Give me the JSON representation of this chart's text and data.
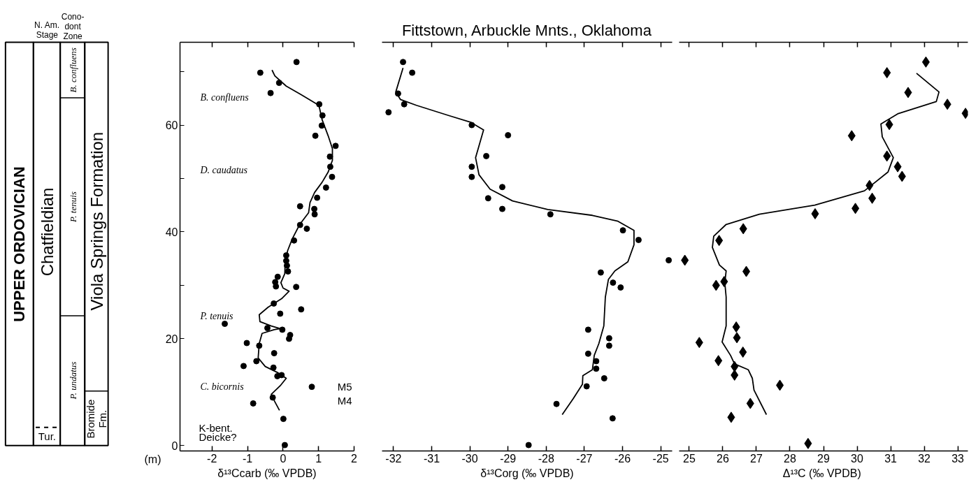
{
  "chart_data": [
    {
      "type": "other",
      "annotations": [
        "UPPER ORDOVICIAN",
        "N. Am.\nStage",
        "Chatfieldian",
        "Tur.",
        "Cono-\ndont\nZone",
        "B. confluens",
        "P. tenuis",
        "P. undatus",
        "Viola Springs Formation",
        "Bromide\nFm."
      ]
    },
    {
      "type": "scatter",
      "xlabel": "δ¹³Ccarb (‰ VPDB)",
      "ylabel": "(m)",
      "xlim": [
        -2.9,
        2
      ],
      "xticks": [
        -2,
        -1,
        0,
        1,
        2
      ],
      "ylim": [
        -1,
        75.5
      ],
      "yticks": [
        0,
        20,
        {
          "value": 30,
          "label": null
        },
        40,
        {
          "value": 50,
          "label": null
        },
        60,
        {
          "value": 70,
          "label": null
        }
      ],
      "annotations": [
        "B. confluens",
        "D. caudatus",
        "P. tenuis",
        "C. bicornis",
        "K-bent.",
        "Deicke?",
        "M5\nM4"
      ],
      "series": [
        {
          "type": "scatter",
          "marker": "circle",
          "color": "#000000",
          "x": [
            0.38,
            -0.64,
            -0.11,
            -0.35,
            1.02,
            1.11,
            1.09,
            0.91,
            1.48,
            1.32,
            1.33,
            1.38,
            1.21,
            0.96,
            0.48,
            0.88,
            0.89,
            0.48,
            0.67,
            0.31,
            0.09,
            0.09,
            0.11,
            0.14,
            -0.15,
            -0.22,
            -0.2,
            0.37,
            -0.26,
            0.51,
            -0.08,
            -1.64,
            -0.44,
            -0.02,
            0.2,
            0.17,
            -1.02,
            -0.67,
            -0.25,
            -1.11,
            -0.75,
            -0.27,
            -0.16,
            -0.04,
            0.81,
            -0.29,
            -0.84,
            0.01,
            0.05
          ],
          "values": [
            71.8,
            69.8,
            67.9,
            66.0,
            63.9,
            61.8,
            59.9,
            58.0,
            56.1,
            54.1,
            52.2,
            50.3,
            48.3,
            46.4,
            44.8,
            44.3,
            43.3,
            41.3,
            40.6,
            38.4,
            35.6,
            34.6,
            33.7,
            32.6,
            31.6,
            30.6,
            29.8,
            29.7,
            26.6,
            25.5,
            24.7,
            22.8,
            22.0,
            21.7,
            20.7,
            20.0,
            19.2,
            18.7,
            17.3,
            14.9,
            15.8,
            14.6,
            13.0,
            13.2,
            11.0,
            9.0,
            7.9,
            5.0,
            0.1
          ]
        },
        {
          "type": "line",
          "color": "#000000",
          "x": [
            -0.31,
            -0.23,
            0.09,
            0.51,
            1.01,
            1.1,
            1.27,
            1.39,
            1.39,
            1.27,
            1.1,
            0.89,
            0.76,
            0.72,
            0.47,
            0.26,
            0.13,
            0.06,
            0.05,
            -0.06,
            0.0,
            0.17,
            -0.04,
            -0.42,
            -0.67,
            -0.65,
            -0.33,
            -0.08,
            -0.25,
            -0.59,
            -0.67,
            -0.7,
            -0.5,
            -0.16,
            0.09,
            -0.08,
            -0.33,
            -0.23,
            -0.1
          ],
          "values": [
            70.3,
            69.2,
            67.3,
            65.7,
            63.7,
            61.0,
            58.0,
            55.6,
            53.4,
            51.2,
            49.3,
            47.4,
            45.5,
            43.6,
            41.4,
            38.7,
            36.5,
            34.4,
            32.2,
            30.5,
            29.5,
            28.9,
            27.5,
            25.9,
            24.5,
            23.2,
            22.4,
            21.9,
            21.7,
            21.0,
            19.1,
            16.4,
            14.8,
            13.7,
            12.6,
            11.2,
            9.6,
            8.2,
            6.6
          ]
        }
      ]
    },
    {
      "type": "scatter",
      "title": "Fittstown, Arbuckle Mnts., Oklahoma",
      "xlabel": "δ¹³Corg (‰ VPDB)",
      "xlim": [
        -32.3,
        -24.7
      ],
      "xticks": [
        -32,
        -31,
        -30,
        -29,
        -28,
        -27,
        -26,
        -25
      ],
      "ylim": [
        -1,
        75.5
      ],
      "tick_labels": "x",
      "series": [
        {
          "type": "scatter",
          "marker": "circle",
          "color": "#000000",
          "x": [
            -31.75,
            -31.51,
            -31.88,
            -31.72,
            -32.13,
            -29.95,
            -29.0,
            -29.57,
            -29.95,
            -29.95,
            -29.15,
            -29.52,
            -29.15,
            -27.89,
            -25.99,
            -25.58,
            -24.79,
            -26.57,
            -26.25,
            -26.05,
            -26.9,
            -26.35,
            -26.35,
            -26.9,
            -26.69,
            -26.69,
            -26.48,
            -26.94,
            -27.73,
            -26.26,
            -28.46
          ],
          "values": [
            71.8,
            69.8,
            65.9,
            63.9,
            62.4,
            60.0,
            58.1,
            54.2,
            52.2,
            50.3,
            48.4,
            46.3,
            44.3,
            43.3,
            40.3,
            38.5,
            34.7,
            32.4,
            30.5,
            29.6,
            21.7,
            20.1,
            18.7,
            17.2,
            15.8,
            14.4,
            12.6,
            11.1,
            7.8,
            5.1,
            0.1
          ]
        },
        {
          "type": "line",
          "color": "#000000",
          "x": [
            -31.75,
            -31.94,
            -31.82,
            -31.4,
            -30.56,
            -29.97,
            -29.64,
            -29.76,
            -29.85,
            -29.76,
            -29.47,
            -28.88,
            -27.96,
            -26.79,
            -26.12,
            -25.7,
            -25.7,
            -25.86,
            -26.2,
            -26.37,
            -26.45,
            -26.49,
            -26.62,
            -26.74,
            -26.79,
            -27.04,
            -27.05,
            -27.29,
            -27.58
          ],
          "values": [
            70.7,
            66.2,
            64.8,
            63.7,
            61.8,
            60.5,
            59.1,
            56.1,
            53.9,
            50.7,
            48.0,
            45.8,
            44.2,
            43.1,
            42.0,
            40.3,
            37.6,
            34.4,
            32.7,
            31.1,
            27.8,
            22.4,
            19.1,
            16.9,
            14.2,
            13.1,
            11.5,
            8.8,
            5.8
          ]
        }
      ]
    },
    {
      "type": "scatter",
      "xlabel": "Δ¹³C  (‰ VPDB)",
      "xlim": [
        24.7,
        33.3
      ],
      "xticks": [
        25,
        26,
        27,
        28,
        29,
        30,
        31,
        32,
        33
      ],
      "ylim": [
        -1,
        75.5
      ],
      "tick_labels": "x",
      "series": [
        {
          "type": "scatter",
          "marker": "diamond",
          "color": "#000000",
          "x": [
            32.05,
            30.89,
            31.52,
            32.69,
            33.23,
            30.96,
            29.84,
            30.89,
            31.21,
            31.34,
            30.37,
            30.45,
            29.95,
            28.75,
            26.61,
            25.89,
            24.87,
            26.7,
            26.04,
            25.8,
            26.4,
            26.42,
            25.3,
            26.6,
            25.87,
            26.35,
            26.35,
            27.7,
            26.82,
            26.25,
            28.54
          ],
          "values": [
            71.8,
            69.8,
            66.1,
            63.9,
            62.2,
            60.1,
            58.0,
            54.2,
            52.2,
            50.4,
            48.7,
            46.3,
            44.4,
            43.4,
            40.6,
            38.4,
            34.7,
            32.6,
            30.7,
            30.0,
            22.2,
            20.2,
            19.3,
            17.5,
            15.9,
            14.8,
            13.2,
            11.3,
            7.9,
            5.3,
            0.4
          ]
        },
        {
          "type": "line",
          "color": "#000000",
          "x": [
            31.77,
            32.44,
            32.36,
            31.21,
            30.71,
            30.75,
            31.08,
            30.92,
            30.22,
            28.74,
            27.09,
            26.1,
            25.73,
            25.69,
            25.9,
            26.1,
            26.06,
            26.1,
            26.1,
            25.98,
            26.23,
            26.35,
            26.76,
            26.88,
            26.93,
            27.3
          ],
          "values": [
            69.7,
            66.2,
            64.4,
            62.1,
            60.2,
            57.8,
            53.9,
            51.2,
            47.7,
            45.0,
            43.3,
            41.4,
            39.2,
            37.1,
            33.8,
            32.7,
            30.5,
            27.8,
            22.4,
            19.4,
            16.9,
            15.3,
            14.2,
            12.6,
            10.4,
            5.8
          ]
        }
      ]
    }
  ]
}
